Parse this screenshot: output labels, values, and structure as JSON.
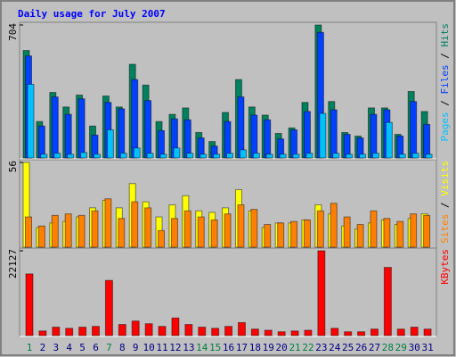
{
  "chart_data": [
    {
      "type": "bar",
      "title": "Daily usage for July 2007",
      "legend_separator": " / ",
      "ylim": [
        0,
        704
      ],
      "yticks": [
        704
      ],
      "series": [
        {
          "name": "Hits",
          "color": "#00805c",
          "values": [
            569,
            193,
            347,
            270,
            333,
            169,
            328,
            270,
            496,
            386,
            193,
            231,
            265,
            135,
            87,
            241,
            415,
            270,
            227,
            130,
            159,
            294,
            704,
            299,
            135,
            116,
            265,
            265,
            125,
            352,
            246
          ]
        },
        {
          "name": "Files",
          "color": "#0040ff",
          "values": [
            540,
            169,
            323,
            231,
            313,
            121,
            294,
            260,
            415,
            304,
            145,
            207,
            202,
            106,
            63,
            193,
            323,
            227,
            202,
            101,
            149,
            246,
            665,
            255,
            125,
            106,
            231,
            255,
            116,
            299,
            178
          ]
        },
        {
          "name": "Pages",
          "color": "#00c0ff",
          "values": [
            390,
            20,
            25,
            20,
            29,
            20,
            149,
            25,
            53,
            25,
            20,
            53,
            25,
            20,
            20,
            25,
            43,
            25,
            20,
            20,
            20,
            25,
            236,
            25,
            20,
            20,
            25,
            188,
            20,
            25,
            20
          ]
        }
      ]
    },
    {
      "type": "bar",
      "legend_separator": " / ",
      "ylim": [
        0,
        56
      ],
      "yticks": [
        56
      ],
      "series": [
        {
          "name": "Visits",
          "color": "#ffff00",
          "values": [
            56,
            13,
            16,
            17,
            20,
            26,
            31,
            26,
            42,
            30,
            20,
            28,
            34,
            24,
            23,
            26,
            38,
            24,
            13,
            16,
            16,
            18,
            28,
            22,
            14,
            12,
            16,
            18,
            15,
            19,
            22
          ]
        },
        {
          "name": "Sites",
          "color": "#ff8000",
          "values": [
            20,
            14,
            21,
            22,
            21,
            24,
            32,
            19,
            30,
            26,
            11,
            19,
            24,
            20,
            18,
            22,
            28,
            25,
            15,
            16,
            17,
            18,
            24,
            29,
            20,
            15,
            24,
            19,
            17,
            22,
            21
          ]
        }
      ]
    },
    {
      "type": "bar",
      "ylim": [
        0,
        22127
      ],
      "yticks": [
        22127
      ],
      "categories": [
        "1",
        "2",
        "3",
        "4",
        "5",
        "6",
        "7",
        "8",
        "9",
        "10",
        "11",
        "12",
        "13",
        "14",
        "15",
        "16",
        "17",
        "18",
        "19",
        "20",
        "21",
        "22",
        "23",
        "24",
        "25",
        "26",
        "27",
        "28",
        "29",
        "30",
        "31"
      ],
      "category_colors": [
        "#008040",
        "#000080",
        "#000080",
        "#000080",
        "#000080",
        "#000080",
        "#008040",
        "#000080",
        "#000080",
        "#000080",
        "#000080",
        "#000080",
        "#000080",
        "#008040",
        "#008040",
        "#000080",
        "#000080",
        "#000080",
        "#000080",
        "#000080",
        "#008040",
        "#008040",
        "#000080",
        "#000080",
        "#000080",
        "#000080",
        "#000080",
        "#008040",
        "#008040",
        "#000080",
        "#000080"
      ],
      "series": [
        {
          "name": "KBytes",
          "color": "#ff0000",
          "values": [
            16100,
            1200,
            2200,
            1900,
            2200,
            2400,
            14400,
            2900,
            3800,
            3100,
            2400,
            4600,
            2900,
            2200,
            1900,
            2400,
            3400,
            1700,
            1400,
            1000,
            1200,
            1400,
            22127,
            1900,
            1000,
            1000,
            1700,
            17800,
            1700,
            2200,
            1700
          ]
        }
      ]
    }
  ]
}
